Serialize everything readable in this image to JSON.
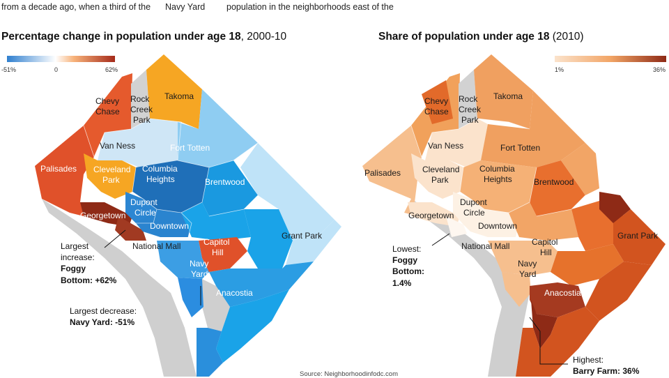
{
  "intro": {
    "col1": "from a decade ago, when a third of the",
    "col2": "Navy Yard",
    "col3": "population in the neighborhoods east of the"
  },
  "left_map": {
    "title_bold": "Percentage change in population under age 18",
    "title_rest": ", 2000-10",
    "legend": {
      "min": "-51%",
      "mid": "0",
      "max": "62%",
      "colors": [
        "#2f7fcf",
        "#ffffff",
        "#a52a1a"
      ]
    },
    "labels": {
      "chevy_chase": [
        "Chevy",
        "Chase"
      ],
      "rock_creek": [
        "Rock",
        "Creek",
        "Park"
      ],
      "takoma": "Takoma",
      "van_ness": "Van Ness",
      "fort_totten": "Fort Totten",
      "palisades": "Palisades",
      "cleveland_park": [
        "Cleveland",
        "Park"
      ],
      "columbia_heights": [
        "Columbia",
        "Heights"
      ],
      "brentwood": "Brentwood",
      "dupont_circle": [
        "Dupont",
        "Circle"
      ],
      "georgetown": "Georgetown",
      "downtown": "Downtown",
      "national_mall": "National Mall",
      "capitol_hill": [
        "Capitol",
        "Hill"
      ],
      "grant_park": "Grant Park",
      "navy_yard": [
        "Navy",
        "Yard"
      ],
      "anacostia": "Anacostia"
    },
    "callout_increase": {
      "line1": "Largest",
      "line2": "increase:",
      "line3": "Foggy",
      "line4": "Bottom: +62%"
    },
    "callout_decrease": {
      "line1": "Largest decrease:",
      "line2": "Navy Yard: -51%"
    }
  },
  "right_map": {
    "title_bold": "Share of population under age 18",
    "title_rest": " (2010)",
    "legend": {
      "min": "1%",
      "max": "36%",
      "colors": [
        "#fbe3cc",
        "#8e2a16"
      ]
    },
    "labels": {
      "chevy_chase": [
        "Chevy",
        "Chase"
      ],
      "rock_creek": [
        "Rock",
        "Creek",
        "Park"
      ],
      "takoma": "Takoma",
      "van_ness": "Van Ness",
      "fort_totten": "Fort Totten",
      "palisades": "Palisades",
      "cleveland_park": [
        "Cleveland",
        "Park"
      ],
      "columbia_heights": [
        "Columbia",
        "Heights"
      ],
      "brentwood": "Brentwood",
      "dupont_circle": [
        "Dupont",
        "Circle"
      ],
      "georgetown": "Georgetown",
      "downtown": "Downtown",
      "national_mall": "National Mall",
      "capitol_hill": [
        "Capitol",
        "Hill"
      ],
      "grant_park": "Grant Park",
      "navy_yard": [
        "Navy",
        "Yard"
      ],
      "anacostia": "Anacostia"
    },
    "callout_lowest": {
      "line1": "Lowest:",
      "line2": "Foggy",
      "line3": "Bottom:",
      "line4": "1.4%"
    },
    "callout_highest": {
      "line1": "Highest:",
      "line2": "Barry Farm: 36%"
    }
  },
  "source": "Source: Neighborhoodinfodc.com"
}
